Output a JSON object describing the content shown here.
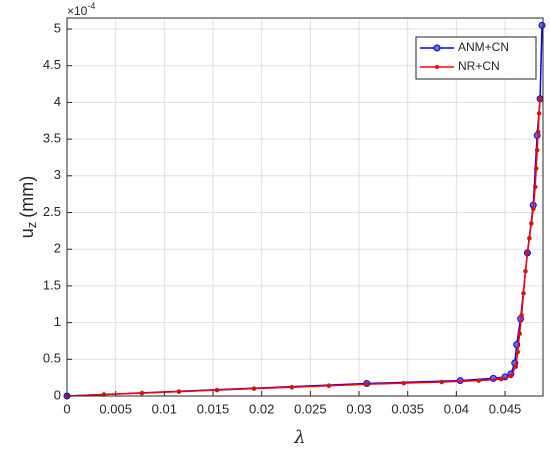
{
  "chart_data": {
    "type": "line",
    "xlabel": "λ",
    "ylabel": "u",
    "ylabel_subscript": "z",
    "ylabel_unit": "(mm)",
    "y_multiplier": "×10",
    "y_multiplier_exponent": "-4",
    "xlim": [
      0,
      0.0489
    ],
    "ylim": [
      0,
      5.15
    ],
    "xticks": [
      0,
      0.005,
      0.01,
      0.015,
      0.02,
      0.025,
      0.03,
      0.035,
      0.04,
      0.045
    ],
    "yticks": [
      0,
      0.5,
      1,
      1.5,
      2,
      2.5,
      3,
      3.5,
      4,
      4.5,
      5
    ],
    "grid": true,
    "legend": "top-right",
    "series": [
      {
        "name": "ANM+CN",
        "color": "#0000ff",
        "marker": "circle",
        "x": [
          0,
          0.0308,
          0.0404,
          0.0438,
          0.045,
          0.0456,
          0.046,
          0.0462,
          0.0466,
          0.0473,
          0.0479,
          0.0483,
          0.0486,
          0.0488
        ],
        "values": [
          0,
          0.17,
          0.21,
          0.24,
          0.26,
          0.3,
          0.45,
          0.7,
          1.05,
          1.95,
          2.6,
          3.55,
          4.05,
          5.05
        ]
      },
      {
        "name": "NR+CN",
        "color": "#ff0000",
        "marker": "dot",
        "x": [
          0,
          0.0038,
          0.0077,
          0.0115,
          0.0154,
          0.0192,
          0.0231,
          0.0269,
          0.0308,
          0.0346,
          0.0385,
          0.0423,
          0.0446,
          0.0456,
          0.0461,
          0.0463,
          0.0465,
          0.0467,
          0.0469,
          0.0471,
          0.0473,
          0.0475,
          0.0477,
          0.0479,
          0.0481,
          0.0482,
          0.0483,
          0.0484,
          0.0485,
          0.0486
        ],
        "values": [
          0,
          0.02,
          0.04,
          0.06,
          0.08,
          0.1,
          0.12,
          0.14,
          0.16,
          0.175,
          0.19,
          0.21,
          0.23,
          0.27,
          0.4,
          0.6,
          0.85,
          1.1,
          1.4,
          1.7,
          1.95,
          2.15,
          2.35,
          2.55,
          2.85,
          3.1,
          3.35,
          3.6,
          3.85,
          4.05
        ]
      }
    ]
  }
}
